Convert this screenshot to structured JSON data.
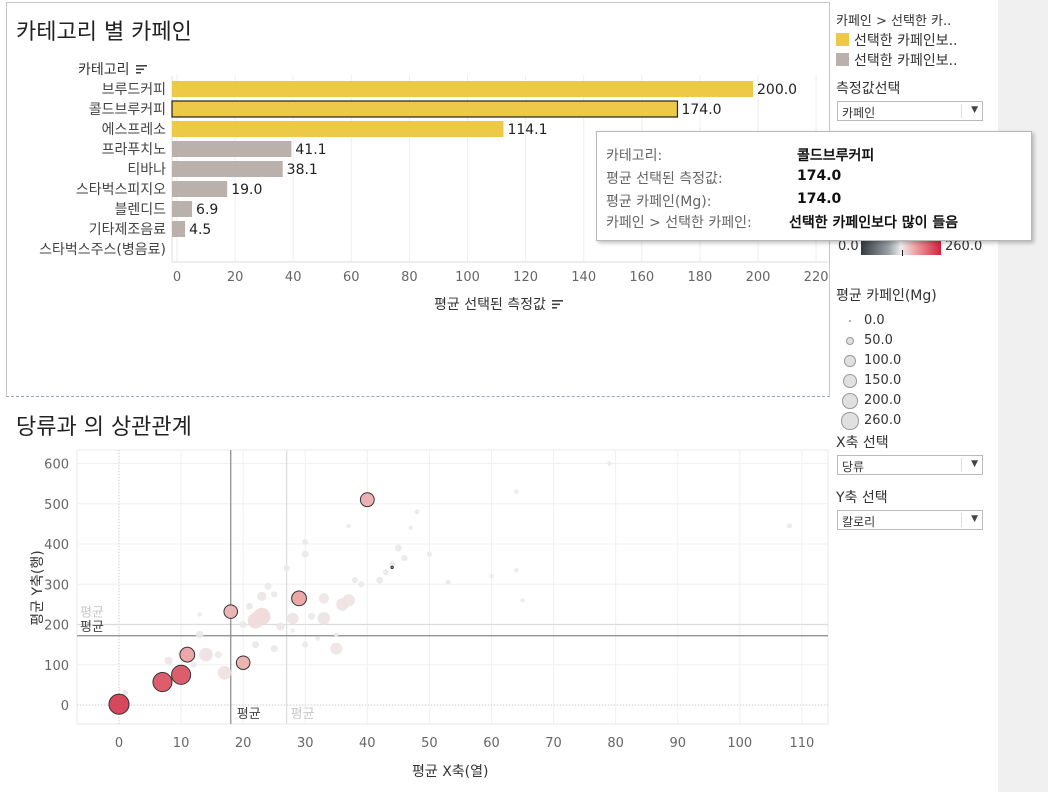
{
  "bar_panel": {
    "title": "카테고리 별 카페인",
    "category_header": "카테고리",
    "sort_icon": "sort-icon",
    "x_axis_title": "평균 선택된 측정값"
  },
  "scatter_panel": {
    "title": "당류과 의 상관관계",
    "x_axis_title": "평균 X축(열)",
    "y_axis_title": "평균 Y축(행)",
    "ref_label_avg": "평균"
  },
  "colors": {
    "highlight": "#edc948",
    "normal": "#bab0ac",
    "scatter_low": "#e6e6e6",
    "scatter_high": "#cf2a45",
    "gradient_start": "#333a40",
    "gradient_end": "#d5213d"
  },
  "legends": {
    "color_title": "카페인 > 선택한 카..",
    "color_items": [
      {
        "label": "선택한 카페인보..",
        "color": "#edc948"
      },
      {
        "label": "선택한 카페인보..",
        "color": "#bab0ac"
      }
    ],
    "measure_select_label": "측정값선택",
    "measure_select_value": "카페인",
    "gradient_min": "0.0",
    "gradient_max": "260.0",
    "size_title": "평균 카페인(Mg)",
    "size_items": [
      "0.0",
      "50.0",
      "100.0",
      "150.0",
      "200.0",
      "260.0"
    ],
    "x_select_label": "X축 선택",
    "x_select_value": "당류",
    "y_select_label": "Y축 선택",
    "y_select_value": "칼로리"
  },
  "tooltip": {
    "rows": [
      {
        "key": "카테고리:",
        "value": "콜드브루커피"
      },
      {
        "key": "평균 선택된 측정값:",
        "value": "174.0"
      },
      {
        "key": "평균 카페인(Mg):",
        "value": "174.0"
      },
      {
        "key": "카페인 > 선택한 카페인:",
        "value": "선택한 카페인보다 많이 들음"
      }
    ]
  },
  "chart_data": [
    {
      "type": "bar",
      "orientation": "horizontal",
      "categories": [
        "브루드커피",
        "콜드브루커피",
        "에스프레소",
        "프라푸치노",
        "티바나",
        "스타벅스피지오",
        "블렌디드",
        "기타제조음료",
        "스타벅스주스(병음료)"
      ],
      "values": [
        200.0,
        174.0,
        114.1,
        41.1,
        38.1,
        19.0,
        6.9,
        4.5,
        0
      ],
      "value_labels": [
        "200.0",
        "174.0",
        "114.1",
        "41.1",
        "38.1",
        "19.0",
        "6.9",
        "4.5",
        ""
      ],
      "highlighted": [
        true,
        true,
        true,
        false,
        false,
        false,
        false,
        false,
        false
      ],
      "selected_index": 1,
      "xlabel": "평균 선택된 측정값",
      "ylabel": "카테고리",
      "xlim": [
        0,
        220
      ],
      "xticks": [
        0,
        20,
        40,
        60,
        80,
        100,
        120,
        140,
        160,
        180,
        200,
        220
      ]
    },
    {
      "type": "scatter",
      "xlabel": "평균 X축(열)",
      "ylabel": "평균 Y축(행)",
      "xlim": [
        -7,
        114
      ],
      "ylim": [
        -55,
        615
      ],
      "xticks": [
        0,
        10,
        20,
        30,
        40,
        50,
        60,
        70,
        80,
        90,
        100,
        110
      ],
      "yticks": [
        0,
        100,
        200,
        300,
        400,
        500,
        600
      ],
      "ref_lines": {
        "x_selected": 18,
        "y_selected": 172,
        "x_overall": 27,
        "y_overall": 200
      },
      "points": [
        {
          "x": 0,
          "y": 2,
          "c": 225,
          "h": true
        },
        {
          "x": 7,
          "y": 57,
          "c": 200,
          "h": true
        },
        {
          "x": 10,
          "y": 75,
          "c": 200,
          "h": true
        },
        {
          "x": 11,
          "y": 125,
          "c": 110,
          "h": true
        },
        {
          "x": 18,
          "y": 232,
          "c": 90,
          "h": true
        },
        {
          "x": 20,
          "y": 105,
          "c": 90,
          "h": true
        },
        {
          "x": 29,
          "y": 265,
          "c": 110,
          "h": true
        },
        {
          "x": 40,
          "y": 510,
          "c": 95,
          "h": true
        },
        {
          "x": 44,
          "y": 342,
          "c": 0,
          "h": true
        },
        {
          "x": 23,
          "y": 220,
          "c": 160,
          "h": false
        },
        {
          "x": 22,
          "y": 210,
          "c": 130,
          "h": false
        },
        {
          "x": 14,
          "y": 125,
          "c": 90,
          "h": false
        },
        {
          "x": 17,
          "y": 80,
          "c": 90,
          "h": false
        },
        {
          "x": 33,
          "y": 215,
          "c": 75,
          "h": false
        },
        {
          "x": 36,
          "y": 250,
          "c": 75,
          "h": false
        },
        {
          "x": 37,
          "y": 260,
          "c": 70,
          "h": false
        },
        {
          "x": 35,
          "y": 140,
          "c": 65,
          "h": false
        },
        {
          "x": 28,
          "y": 215,
          "c": 60,
          "h": false
        },
        {
          "x": 33,
          "y": 265,
          "c": 45,
          "h": false
        },
        {
          "x": 23,
          "y": 270,
          "c": 35,
          "h": false
        },
        {
          "x": 26,
          "y": 195,
          "c": 25,
          "h": false
        },
        {
          "x": 1,
          "y": 30,
          "c": 10,
          "h": false
        },
        {
          "x": 8,
          "y": 110,
          "c": 25,
          "h": false
        },
        {
          "x": 13,
          "y": 175,
          "c": 20,
          "h": false
        },
        {
          "x": 16,
          "y": 125,
          "c": 15,
          "h": false
        },
        {
          "x": 20,
          "y": 200,
          "c": 15,
          "h": false
        },
        {
          "x": 22,
          "y": 150,
          "c": 15,
          "h": false
        },
        {
          "x": 25,
          "y": 140,
          "c": 15,
          "h": false
        },
        {
          "x": 21,
          "y": 245,
          "c": 15,
          "h": false
        },
        {
          "x": 24,
          "y": 295,
          "c": 15,
          "h": false
        },
        {
          "x": 30,
          "y": 150,
          "c": 10,
          "h": false
        },
        {
          "x": 31,
          "y": 220,
          "c": 15,
          "h": false
        },
        {
          "x": 30,
          "y": 375,
          "c": 15,
          "h": false
        },
        {
          "x": 30,
          "y": 405,
          "c": 10,
          "h": false
        },
        {
          "x": 38,
          "y": 310,
          "c": 10,
          "h": false
        },
        {
          "x": 39,
          "y": 300,
          "c": 10,
          "h": false
        },
        {
          "x": 42,
          "y": 310,
          "c": 15,
          "h": false
        },
        {
          "x": 45,
          "y": 390,
          "c": 15,
          "h": false
        },
        {
          "x": 44,
          "y": 350,
          "c": 10,
          "h": false
        },
        {
          "x": 43,
          "y": 330,
          "c": 10,
          "h": false
        },
        {
          "x": 46,
          "y": 365,
          "c": 10,
          "h": false
        },
        {
          "x": 50,
          "y": 375,
          "c": 5,
          "h": false
        },
        {
          "x": 48,
          "y": 480,
          "c": 5,
          "h": false
        },
        {
          "x": 27,
          "y": 340,
          "c": 10,
          "h": false
        },
        {
          "x": 10,
          "y": 130,
          "c": 10,
          "h": false
        },
        {
          "x": 12,
          "y": 100,
          "c": 10,
          "h": false
        },
        {
          "x": 25,
          "y": 275,
          "c": 10,
          "h": false
        },
        {
          "x": 53,
          "y": 305,
          "c": 5,
          "h": false
        },
        {
          "x": 60,
          "y": 320,
          "c": 3,
          "h": false
        },
        {
          "x": 64,
          "y": 335,
          "c": 3,
          "h": false
        },
        {
          "x": 65,
          "y": 260,
          "c": 3,
          "h": false
        },
        {
          "x": 64,
          "y": 530,
          "c": 3,
          "h": false
        },
        {
          "x": 79,
          "y": 600,
          "c": 3,
          "h": false
        },
        {
          "x": 108,
          "y": 445,
          "c": 5,
          "h": false
        },
        {
          "x": 37,
          "y": 445,
          "c": 3,
          "h": false
        },
        {
          "x": 47,
          "y": 440,
          "c": 3,
          "h": false
        },
        {
          "x": 13,
          "y": 225,
          "c": 3,
          "h": false
        },
        {
          "x": 28,
          "y": 185,
          "c": 3,
          "h": false
        },
        {
          "x": 32,
          "y": 165,
          "c": 3,
          "h": false
        },
        {
          "x": 35,
          "y": 175,
          "c": 3,
          "h": false
        }
      ]
    }
  ]
}
